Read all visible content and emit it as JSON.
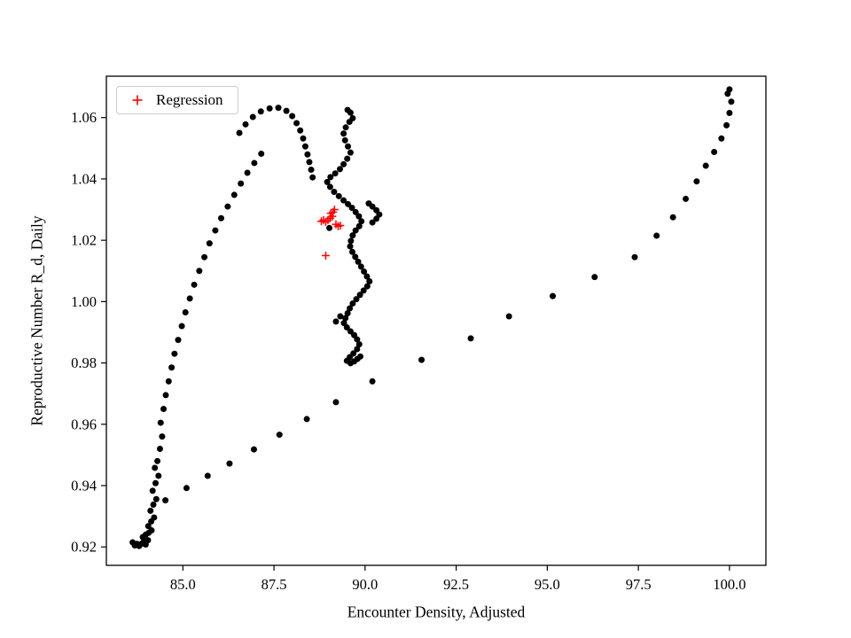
{
  "chart_data": {
    "type": "scatter",
    "title": "",
    "xlabel": "Encounter Density, Adjusted",
    "ylabel": "Reproductive Number R_d, Daily",
    "xlim": [
      82.9,
      101.0
    ],
    "ylim": [
      0.914,
      1.0735
    ],
    "xticks": [
      85.0,
      87.5,
      90.0,
      92.5,
      95.0,
      97.5,
      100.0
    ],
    "xtick_labels": [
      "85.0",
      "87.5",
      "90.0",
      "92.5",
      "95.0",
      "97.5",
      "100.0"
    ],
    "yticks": [
      0.92,
      0.94,
      0.96,
      0.98,
      1.0,
      1.02,
      1.04,
      1.06
    ],
    "ytick_labels": [
      "0.92",
      "0.94",
      "0.96",
      "0.98",
      "1.00",
      "1.02",
      "1.04",
      "1.06"
    ],
    "grid": false,
    "legend": {
      "position": "upper left",
      "entries": [
        {
          "label": "Regression",
          "marker": "plus",
          "color": "#ff0000"
        }
      ]
    },
    "series": [
      {
        "name": "trajectory",
        "marker": "circle",
        "color": "#000000",
        "points": [
          [
            83.62,
            0.9215
          ],
          [
            83.68,
            0.9205
          ],
          [
            83.74,
            0.921
          ],
          [
            83.8,
            0.9203
          ],
          [
            83.86,
            0.921
          ],
          [
            83.92,
            0.9216
          ],
          [
            83.98,
            0.9208
          ],
          [
            84.04,
            0.9222
          ],
          [
            83.9,
            0.9232
          ],
          [
            83.98,
            0.924
          ],
          [
            84.06,
            0.9246
          ],
          [
            84.14,
            0.9254
          ],
          [
            84.05,
            0.9268
          ],
          [
            84.13,
            0.9283
          ],
          [
            84.21,
            0.9296
          ],
          [
            84.11,
            0.9318
          ],
          [
            84.19,
            0.9338
          ],
          [
            84.27,
            0.9356
          ],
          [
            84.17,
            0.9383
          ],
          [
            84.25,
            0.9408
          ],
          [
            84.33,
            0.9432
          ],
          [
            84.23,
            0.9458
          ],
          [
            84.3,
            0.948
          ],
          [
            84.37,
            0.952
          ],
          [
            84.43,
            0.956
          ],
          [
            84.39,
            0.9605
          ],
          [
            84.47,
            0.965
          ],
          [
            84.53,
            0.9695
          ],
          [
            84.61,
            0.974
          ],
          [
            84.69,
            0.9785
          ],
          [
            84.77,
            0.983
          ],
          [
            84.87,
            0.9875
          ],
          [
            84.97,
            0.992
          ],
          [
            85.07,
            0.9965
          ],
          [
            85.19,
            1.001
          ],
          [
            85.31,
            1.0055
          ],
          [
            85.45,
            1.01
          ],
          [
            85.59,
            1.0145
          ],
          [
            85.73,
            1.019
          ],
          [
            85.89,
            1.0232
          ],
          [
            86.05,
            1.0272
          ],
          [
            86.23,
            1.031
          ],
          [
            86.41,
            1.0348
          ],
          [
            86.59,
            1.0385
          ],
          [
            86.77,
            1.042
          ],
          [
            86.96,
            1.0452
          ],
          [
            87.15,
            1.0482
          ],
          [
            86.55,
            1.055
          ],
          [
            86.72,
            1.0578
          ],
          [
            86.92,
            1.0602
          ],
          [
            87.14,
            1.062
          ],
          [
            87.38,
            1.063
          ],
          [
            87.62,
            1.0632
          ],
          [
            87.84,
            1.0622
          ],
          [
            88.0,
            1.0605
          ],
          [
            88.12,
            1.0582
          ],
          [
            88.22,
            1.0558
          ],
          [
            88.3,
            1.0532
          ],
          [
            88.36,
            1.0506
          ],
          [
            88.42,
            1.048
          ],
          [
            88.47,
            1.0455
          ],
          [
            88.52,
            1.043
          ],
          [
            88.56,
            1.0405
          ],
          [
            89.52,
            1.0625
          ],
          [
            89.6,
            1.0616
          ],
          [
            89.66,
            1.0598
          ],
          [
            89.57,
            1.0586
          ],
          [
            89.47,
            1.0568
          ],
          [
            89.41,
            1.0548
          ],
          [
            89.45,
            1.0526
          ],
          [
            89.53,
            1.0506
          ],
          [
            89.6,
            1.0486
          ],
          [
            89.51,
            1.0466
          ],
          [
            89.41,
            1.0448
          ],
          [
            89.31,
            1.0432
          ],
          [
            89.18,
            1.0418
          ],
          [
            89.05,
            1.0406
          ],
          [
            88.96,
            1.039
          ],
          [
            89.04,
            1.0374
          ],
          [
            89.15,
            1.0358
          ],
          [
            89.28,
            1.0344
          ],
          [
            89.41,
            1.033
          ],
          [
            89.53,
            1.0318
          ],
          [
            89.64,
            1.0306
          ],
          [
            89.74,
            1.0292
          ],
          [
            89.83,
            1.0278
          ],
          [
            89.9,
            1.0262
          ],
          [
            89.84,
            1.0246
          ],
          [
            89.74,
            1.0232
          ],
          [
            89.66,
            1.0216
          ],
          [
            89.61,
            1.0198
          ],
          [
            89.59,
            1.018
          ],
          [
            89.65,
            1.0162
          ],
          [
            89.73,
            1.0146
          ],
          [
            89.81,
            1.013
          ],
          [
            89.89,
            1.0114
          ],
          [
            89.97,
            1.0098
          ],
          [
            90.05,
            1.0082
          ],
          [
            90.12,
            1.0066
          ],
          [
            90.06,
            1.005
          ],
          [
            89.96,
            1.0036
          ],
          [
            89.86,
            1.0022
          ],
          [
            89.76,
            1.0008
          ],
          [
            89.66,
            0.9994
          ],
          [
            89.58,
            0.9978
          ],
          [
            89.52,
            0.9962
          ],
          [
            89.46,
            0.9946
          ],
          [
            89.42,
            0.993
          ],
          [
            89.5,
            0.9916
          ],
          [
            89.6,
            0.9903
          ],
          [
            89.7,
            0.9891
          ],
          [
            89.78,
            0.9877
          ],
          [
            89.84,
            0.9861
          ],
          [
            89.78,
            0.9845
          ],
          [
            89.68,
            0.9831
          ],
          [
            89.58,
            0.9819
          ],
          [
            89.5,
            0.9807
          ],
          [
            89.6,
            0.9799
          ],
          [
            89.7,
            0.9805
          ],
          [
            89.79,
            0.9813
          ],
          [
            89.87,
            0.9821
          ],
          [
            90.2,
            1.031
          ],
          [
            90.31,
            1.0298
          ],
          [
            90.39,
            1.0284
          ],
          [
            90.31,
            1.027
          ],
          [
            90.2,
            1.0258
          ],
          [
            90.1,
            1.032
          ],
          [
            89.32,
            0.9952
          ],
          [
            89.2,
            0.9935
          ],
          [
            89.02,
            1.024
          ],
          [
            84.52,
            0.9352
          ],
          [
            85.1,
            0.9392
          ],
          [
            85.68,
            0.9432
          ],
          [
            86.28,
            0.9472
          ],
          [
            86.95,
            0.9518
          ],
          [
            87.65,
            0.9566
          ],
          [
            88.4,
            0.9617
          ],
          [
            89.2,
            0.9672
          ],
          [
            90.2,
            0.974
          ],
          [
            91.55,
            0.981
          ],
          [
            92.9,
            0.988
          ],
          [
            93.95,
            0.9952
          ],
          [
            95.15,
            1.0018
          ],
          [
            96.3,
            1.008
          ],
          [
            97.4,
            1.0145
          ],
          [
            98.0,
            1.0215
          ],
          [
            98.45,
            1.0275
          ],
          [
            98.8,
            1.0335
          ],
          [
            99.1,
            1.0392
          ],
          [
            99.35,
            1.0443
          ],
          [
            99.58,
            1.0488
          ],
          [
            99.78,
            1.0532
          ],
          [
            99.92,
            1.0575
          ],
          [
            100.0,
            1.0615
          ],
          [
            100.05,
            1.0652
          ],
          [
            99.95,
            1.0678
          ],
          [
            100.0,
            1.0692
          ]
        ]
      },
      {
        "name": "Regression",
        "marker": "plus",
        "color": "#ff0000",
        "points": [
          [
            88.8,
            1.0262
          ],
          [
            88.86,
            1.0266
          ],
          [
            88.92,
            1.026
          ],
          [
            88.98,
            1.0266
          ],
          [
            89.04,
            1.0272
          ],
          [
            89.06,
            1.0288
          ],
          [
            89.12,
            1.0292
          ],
          [
            89.16,
            1.03
          ],
          [
            89.1,
            1.0278
          ],
          [
            89.2,
            1.0252
          ],
          [
            89.26,
            1.0246
          ],
          [
            89.32,
            1.0248
          ],
          [
            88.92,
            1.015
          ]
        ]
      }
    ]
  }
}
